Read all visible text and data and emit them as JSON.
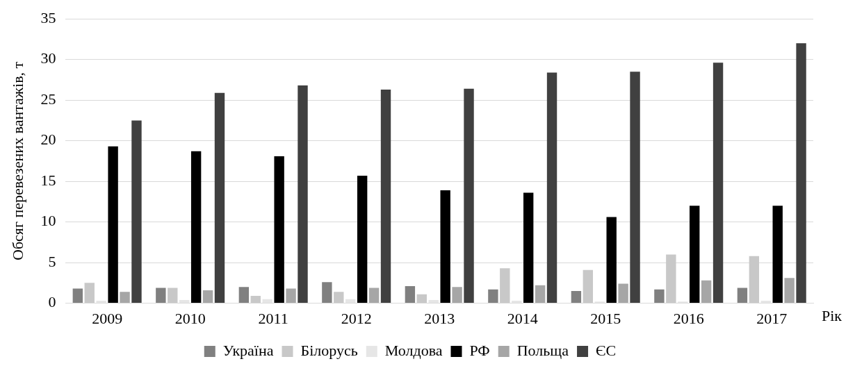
{
  "chart_data": {
    "type": "bar",
    "xlabel": "Рік",
    "ylabel": "Обсяг перевезених вантажів, т",
    "categories": [
      "2009",
      "2010",
      "2011",
      "2012",
      "2013",
      "2014",
      "2015",
      "2016",
      "2017"
    ],
    "series": [
      {
        "name": "Україна",
        "color": "#808080",
        "values": [
          1.8,
          1.9,
          2.0,
          2.6,
          2.1,
          1.7,
          1.5,
          1.7,
          1.9
        ]
      },
      {
        "name": "Білорусь",
        "color": "#c8c8c8",
        "values": [
          2.5,
          1.9,
          0.9,
          1.4,
          1.1,
          4.3,
          4.1,
          6.0,
          5.8
        ]
      },
      {
        "name": "Молдова",
        "color": "#e6e6e6",
        "values": [
          0.3,
          0.4,
          0.5,
          0.5,
          0.4,
          0.3,
          0.2,
          0.2,
          0.3
        ]
      },
      {
        "name": "РФ",
        "color": "#000000",
        "values": [
          19.3,
          18.7,
          18.1,
          15.7,
          13.9,
          13.6,
          10.6,
          12.0,
          12.0
        ]
      },
      {
        "name": "Польща",
        "color": "#a6a6a6",
        "values": [
          1.4,
          1.6,
          1.8,
          1.9,
          2.0,
          2.2,
          2.4,
          2.8,
          3.1
        ]
      },
      {
        "name": "ЄС",
        "color": "#404040",
        "values": [
          22.5,
          25.9,
          26.8,
          26.3,
          26.4,
          28.4,
          28.5,
          29.6,
          32.0
        ]
      }
    ],
    "ylim": [
      0,
      35
    ],
    "yticks": [
      0,
      5,
      10,
      15,
      20,
      25,
      30,
      35
    ],
    "grid": "y",
    "legend": "bottom"
  }
}
